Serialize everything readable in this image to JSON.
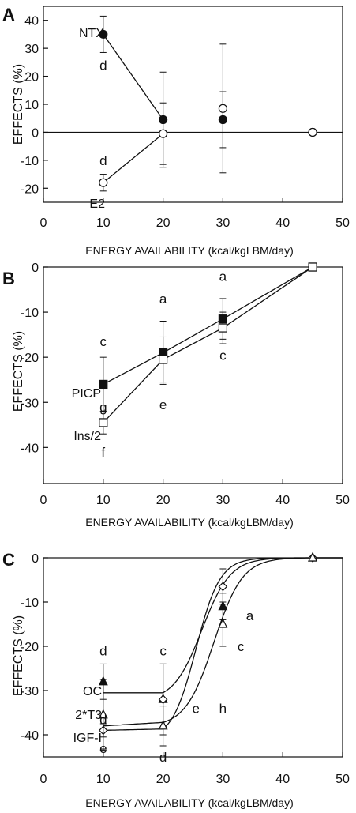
{
  "chart_data": [
    {
      "panel": "A",
      "type": "line",
      "xlabel": "ENERGY AVAILABILITY (kcal/kgLBM/day)",
      "ylabel": "EFFECTS (%)",
      "xlim": [
        0,
        50
      ],
      "ylim": [
        -25,
        45
      ],
      "xticks": [
        0,
        10,
        20,
        30,
        40,
        50
      ],
      "yticks": [
        40,
        30,
        20,
        10,
        0,
        -10,
        -20
      ],
      "zero_line": true,
      "series": [
        {
          "name": "NTX",
          "marker": "filled-circle",
          "x": [
            10,
            20,
            30,
            45
          ],
          "y": [
            35,
            4.5,
            4.5,
            0
          ],
          "err": [
            6.5,
            17,
            10,
            0
          ],
          "line_to": 2
        },
        {
          "name": "E2",
          "marker": "open-circle",
          "x": [
            10,
            20,
            30,
            45
          ],
          "y": [
            -18,
            -0.5,
            8.5,
            0
          ],
          "err": [
            3,
            11,
            23,
            0
          ],
          "line_to": 2
        }
      ],
      "letters": [
        {
          "text": "d",
          "x": 10,
          "y": 24
        },
        {
          "text": "d",
          "x": 10,
          "y": -10
        }
      ]
    },
    {
      "panel": "B",
      "type": "line",
      "xlabel": "ENERGY AVAILABILITY (kcal/kgLBM/day)",
      "ylabel": "EFFECTS (%)",
      "xlim": [
        0,
        50
      ],
      "ylim": [
        -48,
        0
      ],
      "xticks": [
        0,
        10,
        20,
        30,
        40,
        50
      ],
      "yticks": [
        0,
        -10,
        -20,
        -30,
        -40
      ],
      "series": [
        {
          "name": "PICP",
          "marker": "filled-square",
          "x": [
            10,
            20,
            30,
            45
          ],
          "y": [
            -26,
            -19,
            -11.5,
            0
          ],
          "err": [
            6,
            7,
            4.5,
            0
          ],
          "line_to": 4
        },
        {
          "name": "Ins/2",
          "marker": "open-square",
          "x": [
            10,
            20,
            30,
            45
          ],
          "y": [
            -34.5,
            -20.5,
            -13.5,
            0
          ],
          "err": [
            2.5,
            5,
            3.5,
            0
          ],
          "line_to": 4
        }
      ],
      "letters": [
        {
          "text": "c",
          "x": 10,
          "y": -16.5
        },
        {
          "text": "g",
          "x": 10,
          "y": -31
        },
        {
          "text": "f",
          "x": 10,
          "y": -41
        },
        {
          "text": "a",
          "x": 20,
          "y": -7
        },
        {
          "text": "e",
          "x": 20,
          "y": -30.5
        },
        {
          "text": "a",
          "x": 30,
          "y": -2
        },
        {
          "text": "c",
          "x": 30,
          "y": -19.5
        }
      ]
    },
    {
      "panel": "C",
      "type": "line",
      "xlabel": "ENERGY AVAILABILITY (kcal/kgLBM/day)",
      "ylabel": "EFFECTS (%)",
      "xlim": [
        0,
        50
      ],
      "ylim": [
        -45,
        0
      ],
      "xticks": [
        0,
        10,
        20,
        30,
        40,
        50
      ],
      "yticks": [
        0,
        -10,
        -20,
        -30,
        -40
      ],
      "series": [
        {
          "name": "OC",
          "marker": "filled-triangle",
          "x": [
            10,
            20,
            30,
            45
          ],
          "y": [
            -28,
            -32,
            -11,
            0
          ],
          "err": [
            4,
            8,
            3,
            0
          ]
        },
        {
          "name": "2*T3",
          "marker": "open-diamond",
          "x": [
            10,
            20,
            30,
            45
          ],
          "y": [
            -39,
            -32,
            -6.5,
            0
          ],
          "err": [
            1.5,
            8,
            4,
            0
          ]
        },
        {
          "name": "IGF-I",
          "marker": "open-triangle",
          "x": [
            10,
            20,
            30,
            45
          ],
          "y": [
            -35.5,
            -38,
            -15,
            0
          ],
          "err": [
            8,
            4.5,
            5,
            0
          ]
        }
      ],
      "curves": [
        {
          "y10": -30.5,
          "y20": -30.5,
          "mid": 26.5,
          "k": 0.42
        },
        {
          "y10": -39,
          "y20": -38.7,
          "mid": 25.5,
          "k": 0.5
        },
        {
          "y10": -38,
          "y20": -37.2,
          "mid": 28.5,
          "k": 0.42
        }
      ],
      "letters": [
        {
          "text": "d",
          "x": 10,
          "y": -21
        },
        {
          "text": "d",
          "x": 10,
          "y": -36.5
        },
        {
          "text": "e",
          "x": 10,
          "y": -43
        },
        {
          "text": "c",
          "x": 20,
          "y": -21
        },
        {
          "text": "d",
          "x": 20,
          "y": -45
        },
        {
          "text": "e",
          "x": 25.5,
          "y": -34
        },
        {
          "text": "h",
          "x": 30,
          "y": -34
        },
        {
          "text": "a",
          "x": 34.5,
          "y": -13
        },
        {
          "text": "c",
          "x": 33,
          "y": -20
        }
      ]
    }
  ]
}
